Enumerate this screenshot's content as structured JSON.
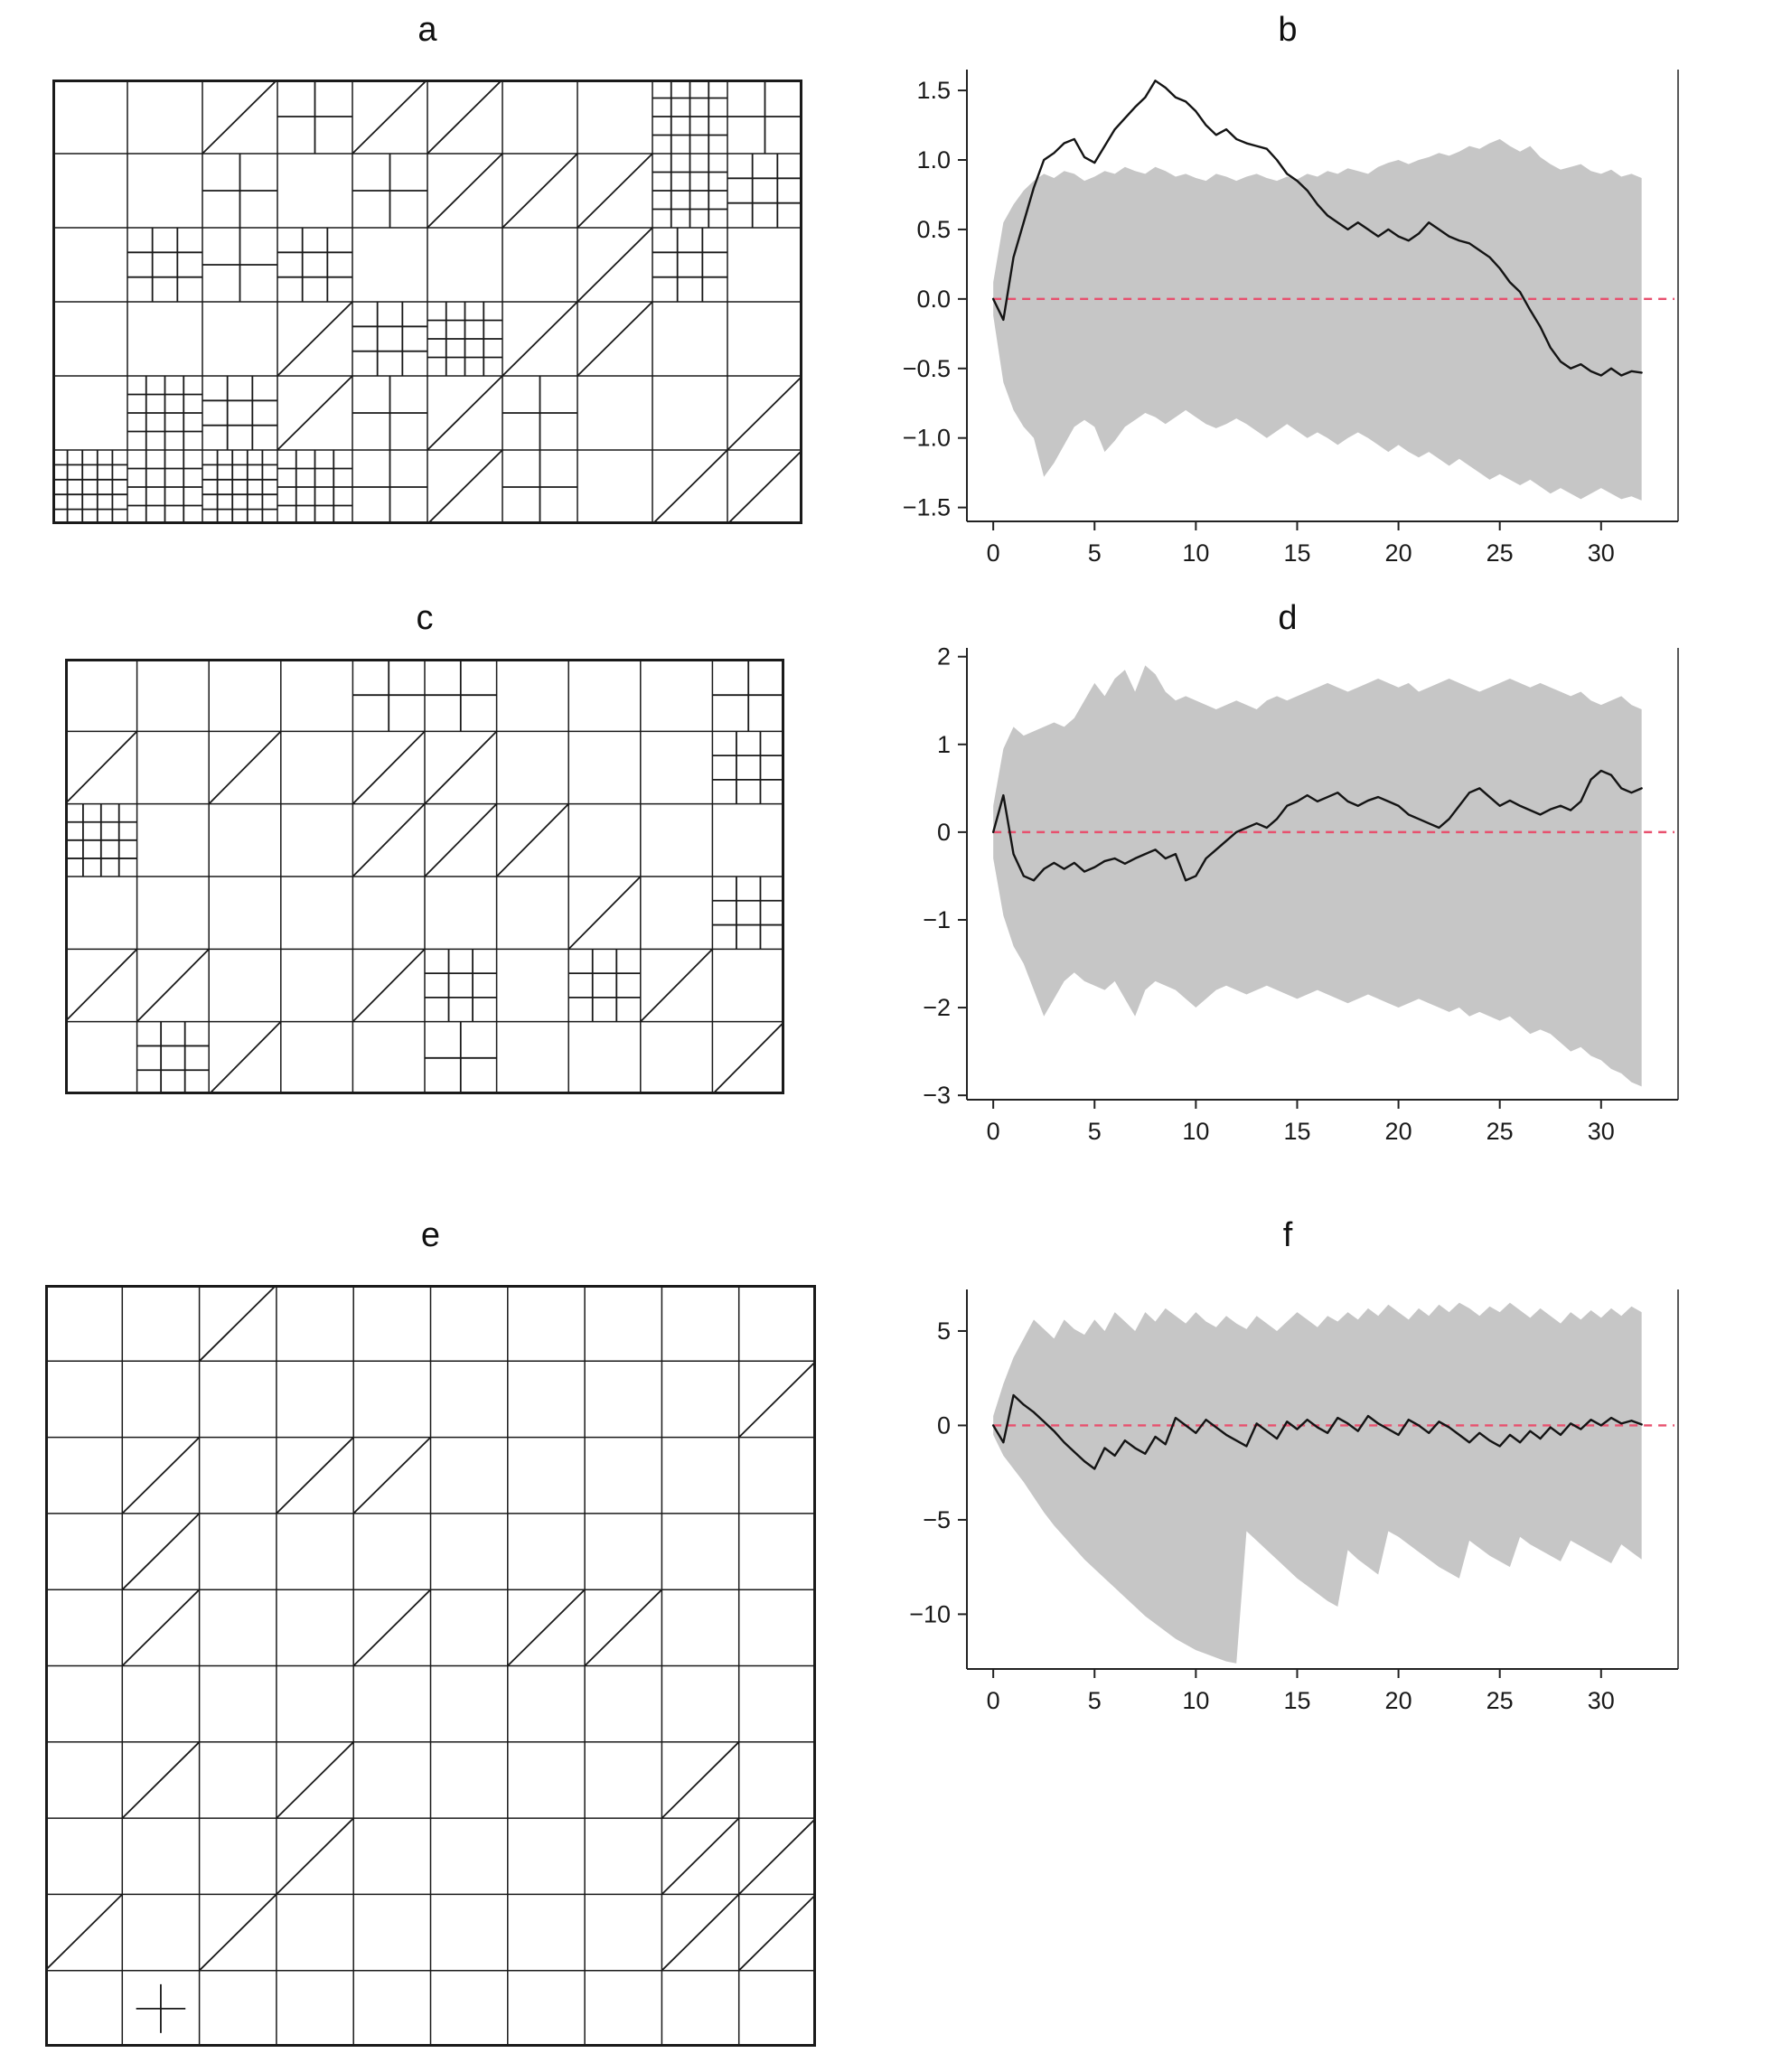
{
  "figure": {
    "background_color": "#ffffff"
  },
  "panels": {
    "a": {
      "label": "a",
      "content": "grid-diagram"
    },
    "b": {
      "label": "b",
      "content": "line-chart"
    },
    "c": {
      "label": "c",
      "content": "grid-diagram"
    },
    "d": {
      "label": "d",
      "content": "line-chart"
    },
    "e": {
      "label": "e",
      "content": "grid-diagram"
    },
    "f": {
      "label": "f",
      "content": "line-chart"
    }
  },
  "grid_diagrams": {
    "a": {
      "cols": 10,
      "rows": 6,
      "cell_patterns": [
        [
          "empty",
          "empty",
          "diag",
          "grid2",
          "diag",
          "diag",
          "empty",
          "empty",
          "grid4",
          "grid2"
        ],
        [
          "empty",
          "empty",
          "grid2",
          "empty",
          "grid2",
          "diag",
          "diag",
          "diag",
          "grid4",
          "grid3"
        ],
        [
          "empty",
          "grid3",
          "grid2",
          "grid3",
          "empty",
          "empty",
          "empty",
          "diag",
          "grid3",
          "empty"
        ],
        [
          "empty",
          "empty",
          "empty",
          "diag",
          "grid3",
          "grid4",
          "diag",
          "diag",
          "empty",
          "empty"
        ],
        [
          "empty",
          "grid4",
          "grid3",
          "diag",
          "grid2",
          "diag",
          "grid2",
          "empty",
          "empty",
          "diag"
        ],
        [
          "grid5",
          "grid4",
          "grid5",
          "grid4",
          "grid2",
          "diag",
          "grid2",
          "empty",
          "diag",
          "diag"
        ]
      ]
    },
    "c": {
      "cols": 10,
      "rows": 6,
      "cell_patterns": [
        [
          "empty",
          "empty",
          "empty",
          "empty",
          "grid2",
          "grid2",
          "empty",
          "empty",
          "empty",
          "grid2"
        ],
        [
          "diag",
          "empty",
          "diag",
          "empty",
          "diag",
          "diag",
          "empty",
          "empty",
          "empty",
          "grid3"
        ],
        [
          "grid4",
          "empty",
          "empty",
          "empty",
          "diag",
          "diag",
          "diag",
          "empty",
          "empty",
          "empty"
        ],
        [
          "empty",
          "empty",
          "empty",
          "empty",
          "empty",
          "empty",
          "empty",
          "diag",
          "empty",
          "grid3"
        ],
        [
          "diag",
          "diag",
          "empty",
          "empty",
          "diag",
          "grid3",
          "empty",
          "grid3",
          "diag",
          "empty"
        ],
        [
          "empty",
          "grid3",
          "diag",
          "empty",
          "empty",
          "grid2",
          "empty",
          "empty",
          "empty",
          "diag"
        ]
      ]
    },
    "e": {
      "cols": 10,
      "rows": 10,
      "cell_patterns": [
        [
          "empty",
          "empty",
          "diag",
          "empty",
          "empty",
          "empty",
          "empty",
          "empty",
          "empty",
          "empty"
        ],
        [
          "empty",
          "empty",
          "empty",
          "empty",
          "empty",
          "empty",
          "empty",
          "empty",
          "empty",
          "diag"
        ],
        [
          "empty",
          "diag",
          "empty",
          "diag",
          "diag",
          "empty",
          "empty",
          "empty",
          "empty",
          "empty"
        ],
        [
          "empty",
          "diag",
          "empty",
          "empty",
          "empty",
          "empty",
          "empty",
          "empty",
          "empty",
          "empty"
        ],
        [
          "empty",
          "diag",
          "empty",
          "empty",
          "diag",
          "empty",
          "diag",
          "diag",
          "empty",
          "empty"
        ],
        [
          "empty",
          "empty",
          "empty",
          "empty",
          "empty",
          "empty",
          "empty",
          "empty",
          "empty",
          "empty"
        ],
        [
          "empty",
          "diag",
          "empty",
          "diag",
          "empty",
          "empty",
          "empty",
          "empty",
          "diag",
          "empty"
        ],
        [
          "empty",
          "empty",
          "empty",
          "diag",
          "empty",
          "empty",
          "empty",
          "empty",
          "diag",
          "diag"
        ],
        [
          "diag",
          "empty",
          "diag",
          "empty",
          "empty",
          "empty",
          "empty",
          "empty",
          "diag",
          "diag"
        ],
        [
          "empty",
          "plus",
          "empty",
          "empty",
          "empty",
          "empty",
          "empty",
          "empty",
          "empty",
          "empty"
        ]
      ]
    }
  },
  "chart_data": [
    {
      "id": "b",
      "type": "line",
      "title": "b",
      "xlabel": "",
      "ylabel": "",
      "xlim": [
        -1.3,
        33.8
      ],
      "ylim": [
        -1.6,
        1.65
      ],
      "xticks": {
        "values": [
          0,
          5,
          10,
          15,
          20,
          25,
          30
        ],
        "labels": [
          "0",
          "5",
          "10",
          "15",
          "20",
          "25",
          "30"
        ]
      },
      "yticks": {
        "values": [
          -1.5,
          -1.0,
          -0.5,
          0.0,
          0.5,
          1.0,
          1.5
        ],
        "labels": [
          "−1.5",
          "−1.0",
          "−0.5",
          "0.0",
          "0.5",
          "1.0",
          "1.5"
        ]
      },
      "grid": false,
      "legend": "none",
      "x_start": 0,
      "x_step": 0.5,
      "zero_line": {
        "y": 0,
        "style": "dashed",
        "color": "#e8506e"
      },
      "band_color": "#c6c6c6",
      "line_color": "#141414",
      "line": [
        0.0,
        -0.15,
        0.3,
        0.55,
        0.8,
        1.0,
        1.05,
        1.12,
        1.15,
        1.02,
        0.98,
        1.1,
        1.22,
        1.3,
        1.38,
        1.45,
        1.57,
        1.52,
        1.45,
        1.42,
        1.35,
        1.25,
        1.18,
        1.22,
        1.15,
        1.12,
        1.1,
        1.08,
        1.0,
        0.9,
        0.85,
        0.78,
        0.68,
        0.6,
        0.55,
        0.5,
        0.55,
        0.5,
        0.45,
        0.5,
        0.45,
        0.42,
        0.47,
        0.55,
        0.5,
        0.45,
        0.42,
        0.4,
        0.35,
        0.3,
        0.22,
        0.12,
        0.05,
        -0.08,
        -0.2,
        -0.35,
        -0.45,
        -0.5,
        -0.47,
        -0.52,
        -0.55,
        -0.5,
        -0.55,
        -0.52,
        -0.53
      ],
      "band_upper": [
        0.12,
        0.55,
        0.68,
        0.78,
        0.85,
        0.9,
        0.87,
        0.92,
        0.9,
        0.85,
        0.88,
        0.92,
        0.9,
        0.95,
        0.92,
        0.9,
        0.95,
        0.92,
        0.88,
        0.9,
        0.87,
        0.85,
        0.9,
        0.88,
        0.85,
        0.88,
        0.9,
        0.87,
        0.85,
        0.88,
        0.86,
        0.9,
        0.88,
        0.92,
        0.9,
        0.94,
        0.92,
        0.9,
        0.95,
        0.98,
        1.0,
        0.97,
        1.0,
        1.02,
        1.05,
        1.03,
        1.06,
        1.1,
        1.08,
        1.12,
        1.15,
        1.1,
        1.06,
        1.1,
        1.02,
        0.97,
        0.93,
        0.95,
        0.97,
        0.92,
        0.9,
        0.93,
        0.88,
        0.9,
        0.87
      ],
      "band_lower": [
        -0.12,
        -0.6,
        -0.8,
        -0.92,
        -1.0,
        -1.28,
        -1.18,
        -1.05,
        -0.92,
        -0.87,
        -0.92,
        -1.1,
        -1.02,
        -0.92,
        -0.87,
        -0.82,
        -0.85,
        -0.9,
        -0.85,
        -0.8,
        -0.85,
        -0.9,
        -0.93,
        -0.9,
        -0.86,
        -0.9,
        -0.95,
        -1.0,
        -0.95,
        -0.9,
        -0.95,
        -1.0,
        -0.96,
        -1.0,
        -1.05,
        -1.0,
        -0.96,
        -1.0,
        -1.05,
        -1.1,
        -1.05,
        -1.1,
        -1.14,
        -1.1,
        -1.15,
        -1.2,
        -1.15,
        -1.2,
        -1.25,
        -1.3,
        -1.26,
        -1.3,
        -1.34,
        -1.3,
        -1.35,
        -1.4,
        -1.36,
        -1.4,
        -1.44,
        -1.4,
        -1.36,
        -1.4,
        -1.44,
        -1.42,
        -1.45
      ]
    },
    {
      "id": "d",
      "type": "line",
      "title": "d",
      "xlabel": "",
      "ylabel": "",
      "xlim": [
        -1.3,
        33.8
      ],
      "ylim": [
        -3.05,
        2.1
      ],
      "xticks": {
        "values": [
          0,
          5,
          10,
          15,
          20,
          25,
          30
        ],
        "labels": [
          "0",
          "5",
          "10",
          "15",
          "20",
          "25",
          "30"
        ]
      },
      "yticks": {
        "values": [
          -3,
          -2,
          -1,
          0,
          1,
          2
        ],
        "labels": [
          "−3",
          "−2",
          "−1",
          "0",
          "1",
          "2"
        ]
      },
      "grid": false,
      "legend": "none",
      "x_start": 0,
      "x_step": 0.5,
      "zero_line": {
        "y": 0,
        "style": "dashed",
        "color": "#e8506e"
      },
      "band_color": "#c6c6c6",
      "line_color": "#141414",
      "line": [
        0.0,
        0.42,
        -0.25,
        -0.5,
        -0.55,
        -0.42,
        -0.35,
        -0.42,
        -0.35,
        -0.45,
        -0.4,
        -0.33,
        -0.3,
        -0.36,
        -0.3,
        -0.25,
        -0.2,
        -0.3,
        -0.25,
        -0.55,
        -0.5,
        -0.3,
        -0.2,
        -0.1,
        0.0,
        0.05,
        0.1,
        0.05,
        0.15,
        0.3,
        0.35,
        0.42,
        0.35,
        0.4,
        0.45,
        0.35,
        0.3,
        0.36,
        0.4,
        0.35,
        0.3,
        0.2,
        0.15,
        0.1,
        0.05,
        0.15,
        0.3,
        0.45,
        0.5,
        0.4,
        0.3,
        0.36,
        0.3,
        0.25,
        0.2,
        0.26,
        0.3,
        0.25,
        0.35,
        0.6,
        0.7,
        0.65,
        0.5,
        0.45,
        0.5
      ],
      "band_upper": [
        0.3,
        0.95,
        1.2,
        1.1,
        1.15,
        1.2,
        1.25,
        1.2,
        1.3,
        1.5,
        1.7,
        1.55,
        1.75,
        1.85,
        1.6,
        1.9,
        1.8,
        1.6,
        1.5,
        1.55,
        1.5,
        1.45,
        1.4,
        1.45,
        1.5,
        1.45,
        1.4,
        1.5,
        1.55,
        1.5,
        1.55,
        1.6,
        1.65,
        1.7,
        1.65,
        1.6,
        1.65,
        1.7,
        1.75,
        1.7,
        1.65,
        1.7,
        1.6,
        1.65,
        1.7,
        1.75,
        1.7,
        1.65,
        1.6,
        1.65,
        1.7,
        1.75,
        1.7,
        1.65,
        1.7,
        1.65,
        1.6,
        1.55,
        1.6,
        1.5,
        1.45,
        1.5,
        1.55,
        1.45,
        1.4
      ],
      "band_lower": [
        -0.3,
        -0.95,
        -1.3,
        -1.5,
        -1.8,
        -2.1,
        -1.9,
        -1.7,
        -1.6,
        -1.7,
        -1.75,
        -1.8,
        -1.7,
        -1.9,
        -2.1,
        -1.8,
        -1.7,
        -1.75,
        -1.8,
        -1.9,
        -2.0,
        -1.9,
        -1.8,
        -1.75,
        -1.8,
        -1.85,
        -1.8,
        -1.75,
        -1.8,
        -1.85,
        -1.9,
        -1.85,
        -1.8,
        -1.85,
        -1.9,
        -1.95,
        -1.9,
        -1.85,
        -1.9,
        -1.95,
        -2.0,
        -1.95,
        -1.9,
        -1.95,
        -2.0,
        -2.05,
        -2.0,
        -2.1,
        -2.05,
        -2.1,
        -2.15,
        -2.1,
        -2.2,
        -2.3,
        -2.25,
        -2.3,
        -2.4,
        -2.5,
        -2.45,
        -2.55,
        -2.6,
        -2.7,
        -2.75,
        -2.85,
        -2.9
      ]
    },
    {
      "id": "f",
      "type": "line",
      "title": "f",
      "xlabel": "",
      "ylabel": "",
      "xlim": [
        -1.3,
        33.8
      ],
      "ylim": [
        -12.9,
        7.2
      ],
      "xticks": {
        "values": [
          0,
          5,
          10,
          15,
          20,
          25,
          30
        ],
        "labels": [
          "0",
          "5",
          "10",
          "15",
          "20",
          "25",
          "30"
        ]
      },
      "yticks": {
        "values": [
          -10,
          -5,
          0,
          5
        ],
        "labels": [
          "−10",
          "−5",
          "0",
          "5"
        ]
      },
      "grid": false,
      "legend": "none",
      "x_start": 0,
      "x_step": 0.5,
      "zero_line": {
        "y": 0,
        "style": "dashed",
        "color": "#e8506e"
      },
      "band_color": "#c6c6c6",
      "line_color": "#141414",
      "line": [
        0.0,
        -0.9,
        1.6,
        1.1,
        0.7,
        0.2,
        -0.3,
        -0.9,
        -1.4,
        -1.9,
        -2.3,
        -1.2,
        -1.6,
        -0.8,
        -1.2,
        -1.5,
        -0.6,
        -1.0,
        0.4,
        0.0,
        -0.4,
        0.3,
        -0.1,
        -0.5,
        -0.8,
        -1.1,
        0.1,
        -0.3,
        -0.7,
        0.2,
        -0.2,
        0.3,
        -0.1,
        -0.4,
        0.4,
        0.1,
        -0.3,
        0.5,
        0.1,
        -0.2,
        -0.5,
        0.3,
        0.0,
        -0.4,
        0.2,
        -0.1,
        -0.5,
        -0.9,
        -0.4,
        -0.8,
        -1.1,
        -0.5,
        -0.9,
        -0.3,
        -0.7,
        -0.1,
        -0.5,
        0.1,
        -0.2,
        0.3,
        0.0,
        0.4,
        0.1,
        0.25,
        0.05
      ],
      "band_upper": [
        0.5,
        2.2,
        3.6,
        4.6,
        5.6,
        5.1,
        4.6,
        5.6,
        5.1,
        4.8,
        5.6,
        5.0,
        6.0,
        5.5,
        5.0,
        6.0,
        5.5,
        6.2,
        5.8,
        5.4,
        6.0,
        5.5,
        5.2,
        5.8,
        5.4,
        5.1,
        5.8,
        5.4,
        5.0,
        5.5,
        6.0,
        5.6,
        5.2,
        5.8,
        5.5,
        6.0,
        5.6,
        6.2,
        5.8,
        6.4,
        6.0,
        5.6,
        6.2,
        5.8,
        6.4,
        6.0,
        6.5,
        6.2,
        5.8,
        6.3,
        6.0,
        6.5,
        6.1,
        5.7,
        6.2,
        5.8,
        5.4,
        6.0,
        5.6,
        6.1,
        5.7,
        6.2,
        5.8,
        6.3,
        6.0
      ],
      "band_lower": [
        -0.5,
        -1.6,
        -2.3,
        -3.0,
        -3.8,
        -4.6,
        -5.3,
        -5.9,
        -6.5,
        -7.1,
        -7.6,
        -8.1,
        -8.6,
        -9.1,
        -9.6,
        -10.1,
        -10.5,
        -10.9,
        -11.3,
        -11.6,
        -11.9,
        -12.1,
        -12.3,
        -12.5,
        -12.6,
        -5.6,
        -6.1,
        -6.6,
        -7.1,
        -7.6,
        -8.1,
        -8.5,
        -8.9,
        -9.3,
        -9.6,
        -6.6,
        -7.1,
        -7.5,
        -7.9,
        -5.6,
        -5.9,
        -6.3,
        -6.7,
        -7.1,
        -7.5,
        -7.8,
        -8.1,
        -6.1,
        -6.5,
        -6.9,
        -7.2,
        -7.5,
        -5.9,
        -6.3,
        -6.6,
        -6.9,
        -7.2,
        -6.1,
        -6.4,
        -6.7,
        -7.0,
        -7.3,
        -6.3,
        -6.7,
        -7.1
      ]
    }
  ]
}
